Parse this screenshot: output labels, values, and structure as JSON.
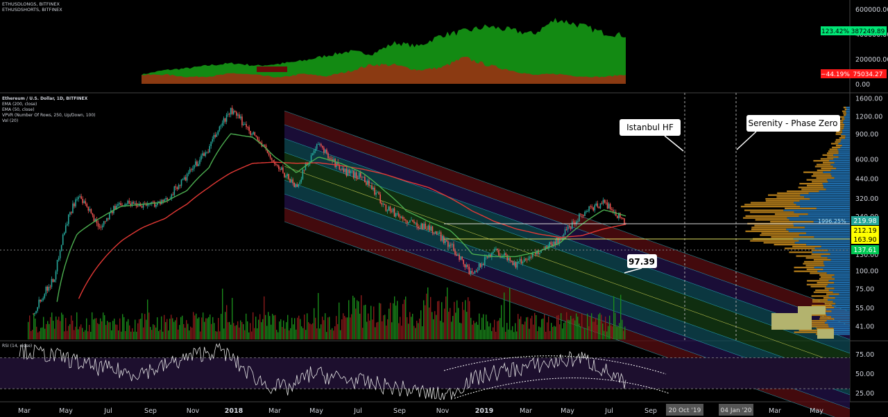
{
  "colors": {
    "background": "#000000",
    "longs_fill": "#138a13",
    "shorts_fill": "#8b3a12",
    "ema200": "#e53935",
    "ema50": "#4caf50",
    "price_up": "#26a69a",
    "price_down": "#ef5350",
    "green_tag": "#00e676",
    "red_tag": "#ff1a1a",
    "yellow_tag": "#ffff00",
    "teal_tag": "#26a69a",
    "cyan_tag": "#4fc3f7",
    "channel_red": "#5a0d12",
    "channel_purple": "#23124a",
    "channel_cyan": "#0f4a55",
    "channel_green": "#163d16",
    "vpvr_up": "#1f6aa6",
    "vpvr_down": "#b07a1a",
    "rsi_band": "#1d0f2e",
    "rsi_line": "#e6e6e6"
  },
  "top_panel": {
    "legend": [
      "ETHUSDLONGS, BITFINEX",
      "ETHUSDSHORTS, BITFINEX"
    ],
    "axis_ticks": [
      "600000.00",
      "400000.00",
      "200000.00",
      "0.00"
    ],
    "longs_tag": {
      "pct": "123.42%",
      "value": "387249.89"
    },
    "shorts_tag": {
      "pct": "−44.19%",
      "value": "75034.27"
    }
  },
  "main_panel": {
    "legend": [
      "Ethereum / U.S. Dollar, 1D, BITFINEX",
      "EMA (200, close)",
      "EMA (50, close)",
      "VPVR (Number Of Rows, 250, Up/Down, 100)",
      "Vol (20)"
    ],
    "axis_ticks": [
      "1600.00",
      "1200.00",
      "900.00",
      "600.00",
      "440.00",
      "320.00",
      "240.00",
      "180.00",
      "130.00",
      "100.00",
      "75.00",
      "55.00",
      "41.00"
    ],
    "price_tags": [
      {
        "text": "219.98",
        "color": "teal"
      },
      {
        "text": "212.19",
        "color": "yellow"
      },
      {
        "text": "163.90",
        "color": "yellow"
      },
      {
        "text": "137.61",
        "color": "green"
      }
    ],
    "vpvr_label": "1996.25%",
    "callouts": {
      "istanbul": "Istanbul HF",
      "serenity": "Serenity - Phase Zero",
      "price_97": "97.39"
    }
  },
  "rsi_panel": {
    "legend": "RSI (14, close)",
    "axis_ticks": [
      "75.00",
      "50.00",
      "25.00"
    ]
  },
  "time_axis": {
    "labels": [
      "Mar",
      "May",
      "Jul",
      "Sep",
      "Nov",
      "2018",
      "Mar",
      "May",
      "Jul",
      "Sep",
      "Nov",
      "2019",
      "Mar",
      "May",
      "Jul",
      "Sep",
      "Mar",
      "May"
    ],
    "highlight_labels": [
      "20 Oct '19",
      "04 Jan '20"
    ]
  },
  "chart_data": [
    {
      "type": "area",
      "title": "ETHUSDLONGS / ETHUSDSHORTS, BITFINEX",
      "series": [
        {
          "name": "ETHUSDLONGS",
          "values": [
            75000,
            110000,
            125000,
            150000,
            165000,
            145000,
            160000,
            185000,
            225000,
            260000,
            240000,
            330000,
            300000,
            390000,
            420000,
            460000,
            430000,
            400000,
            520000,
            470000,
            410000,
            387249.89
          ]
        },
        {
          "name": "ETHUSDSHORTS",
          "values": [
            70000,
            75000,
            55000,
            60000,
            85000,
            70000,
            50000,
            80000,
            60000,
            100000,
            155000,
            150000,
            110000,
            130000,
            210000,
            150000,
            110000,
            70000,
            80000,
            60000,
            55000,
            75034.27
          ]
        }
      ],
      "ylim": [
        0,
        650000
      ]
    },
    {
      "type": "line",
      "title": "Ethereum / U.S. Dollar, 1D, BITFINEX",
      "x": [
        "2017-03",
        "2017-05",
        "2017-06",
        "2017-07",
        "2017-08",
        "2017-09",
        "2017-10",
        "2017-11",
        "2017-12",
        "2018-01",
        "2018-02",
        "2018-03",
        "2018-04",
        "2018-05",
        "2018-06",
        "2018-07",
        "2018-08",
        "2018-09",
        "2018-10",
        "2018-11",
        "2018-12",
        "2019-01",
        "2019-02",
        "2019-03",
        "2019-04",
        "2019-05",
        "2019-06",
        "2019-07"
      ],
      "series": [
        {
          "name": "ETHUSD",
          "values": [
            50,
            90,
            330,
            200,
            300,
            290,
            300,
            450,
            700,
            1300,
            900,
            550,
            380,
            750,
            500,
            450,
            280,
            220,
            200,
            150,
            90,
            140,
            110,
            135,
            165,
            250,
            300,
            212.19
          ]
        },
        {
          "name": "EMA (200, close)",
          "values": [
            null,
            null,
            60,
            110,
            160,
            200,
            230,
            290,
            380,
            480,
            560,
            570,
            560,
            565,
            540,
            510,
            470,
            420,
            380,
            320,
            260,
            220,
            195,
            180,
            170,
            175,
            195,
            210
          ]
        },
        {
          "name": "EMA (50, close)",
          "values": [
            null,
            50,
            180,
            230,
            280,
            290,
            300,
            360,
            520,
            900,
            850,
            620,
            480,
            620,
            560,
            480,
            360,
            260,
            220,
            190,
            130,
            125,
            125,
            135,
            155,
            210,
            265,
            240
          ]
        }
      ],
      "yscale": "log",
      "ylim": [
        33,
        1700
      ]
    },
    {
      "type": "line",
      "title": "RSI (14, close)",
      "series": [
        {
          "name": "RSI",
          "values": [
            80,
            75,
            70,
            60,
            55,
            50,
            55,
            65,
            75,
            80,
            55,
            35,
            30,
            50,
            45,
            40,
            35,
            30,
            25,
            20,
            40,
            50,
            55,
            60,
            65,
            70,
            55,
            35
          ]
        }
      ],
      "ylim": [
        15,
        90
      ],
      "bands": [
        30,
        70
      ]
    }
  ]
}
